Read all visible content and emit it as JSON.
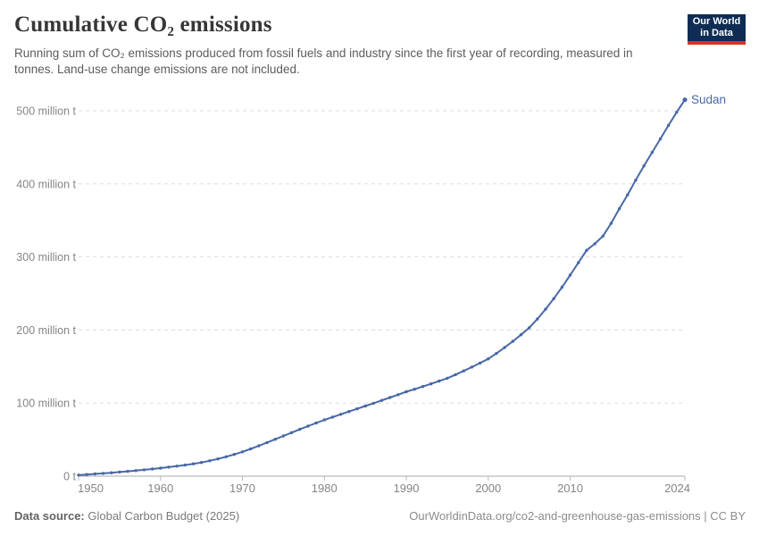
{
  "header": {
    "title": "Cumulative CO₂ emissions",
    "subtitle": "Running sum of CO₂ emissions produced from fossil fuels and industry since the first year of recording, measured in tonnes. Land-use change emissions are not included.",
    "logo": {
      "line1": "Our World",
      "line2": "in Data"
    }
  },
  "footer": {
    "source_label": "Data source:",
    "source_value": " Global Carbon Budget (2025)",
    "link": "OurWorldinData.org/co2-and-greenhouse-gas-emissions | CC BY"
  },
  "colors": {
    "line": "#4868a6",
    "end_label": "#4868a6",
    "gridline": "#dddddd",
    "axis": "#a8a8a8",
    "tick": "#bbbbbb",
    "tick_text": "#858585",
    "logo_bg": "#0f2d54",
    "logo_accent": "#d5332c"
  },
  "chart_data": {
    "type": "line",
    "title": "Cumulative CO₂ emissions",
    "unit": "million tonnes",
    "grid": "horizontal-dashed",
    "legend_position": "end-of-line",
    "xlim": [
      1950,
      2024
    ],
    "ylim": [
      0,
      520
    ],
    "x_ticks": [
      {
        "value": 1950,
        "label": "1950"
      },
      {
        "value": 1960,
        "label": "1960"
      },
      {
        "value": 1970,
        "label": "1970"
      },
      {
        "value": 1980,
        "label": "1980"
      },
      {
        "value": 1990,
        "label": "1990"
      },
      {
        "value": 2000,
        "label": "2000"
      },
      {
        "value": 2010,
        "label": "2010"
      },
      {
        "value": 2024,
        "label": "2024"
      }
    ],
    "y_ticks": [
      {
        "value": 0,
        "label": "0 t"
      },
      {
        "value": 100,
        "label": "100 million t"
      },
      {
        "value": 200,
        "label": "200 million t"
      },
      {
        "value": 300,
        "label": "300 million t"
      },
      {
        "value": 400,
        "label": "400 million t"
      },
      {
        "value": 500,
        "label": "500 million t"
      }
    ],
    "series": [
      {
        "name": "Sudan",
        "x": [
          1950,
          1951,
          1952,
          1953,
          1954,
          1955,
          1956,
          1957,
          1958,
          1959,
          1960,
          1961,
          1962,
          1963,
          1964,
          1965,
          1966,
          1967,
          1968,
          1969,
          1970,
          1971,
          1972,
          1973,
          1974,
          1975,
          1976,
          1977,
          1978,
          1979,
          1980,
          1981,
          1982,
          1983,
          1984,
          1985,
          1986,
          1987,
          1988,
          1989,
          1990,
          1991,
          1992,
          1993,
          1994,
          1995,
          1996,
          1997,
          1998,
          1999,
          2000,
          2001,
          2002,
          2003,
          2004,
          2005,
          2006,
          2007,
          2008,
          2009,
          2010,
          2011,
          2012,
          2013,
          2014,
          2015,
          2016,
          2017,
          2018,
          2019,
          2020,
          2021,
          2022,
          2023,
          2024
        ],
        "values": [
          1.5,
          2.2,
          3.0,
          3.8,
          4.7,
          5.6,
          6.6,
          7.6,
          8.7,
          9.8,
          11.0,
          12.3,
          13.7,
          15.2,
          16.9,
          18.7,
          21.0,
          23.6,
          26.5,
          29.7,
          33.2,
          37.3,
          41.6,
          46.0,
          50.5,
          55.0,
          59.5,
          64.0,
          68.4,
          72.7,
          77.0,
          80.8,
          84.6,
          88.4,
          92.2,
          96.0,
          99.8,
          103.7,
          107.6,
          111.5,
          115.5,
          119.0,
          122.6,
          126.3,
          130.1,
          134.0,
          138.9,
          144.0,
          149.3,
          154.8,
          160.5,
          168.0,
          176.0,
          184.5,
          193.5,
          203.0,
          215.0,
          228.5,
          243.0,
          258.5,
          275.0,
          292.0,
          309.0,
          318.0,
          328.5,
          346.0,
          366.0,
          385.0,
          405.0,
          424.5,
          443.0,
          461.5,
          480.0,
          498.0,
          515.0
        ]
      }
    ]
  }
}
